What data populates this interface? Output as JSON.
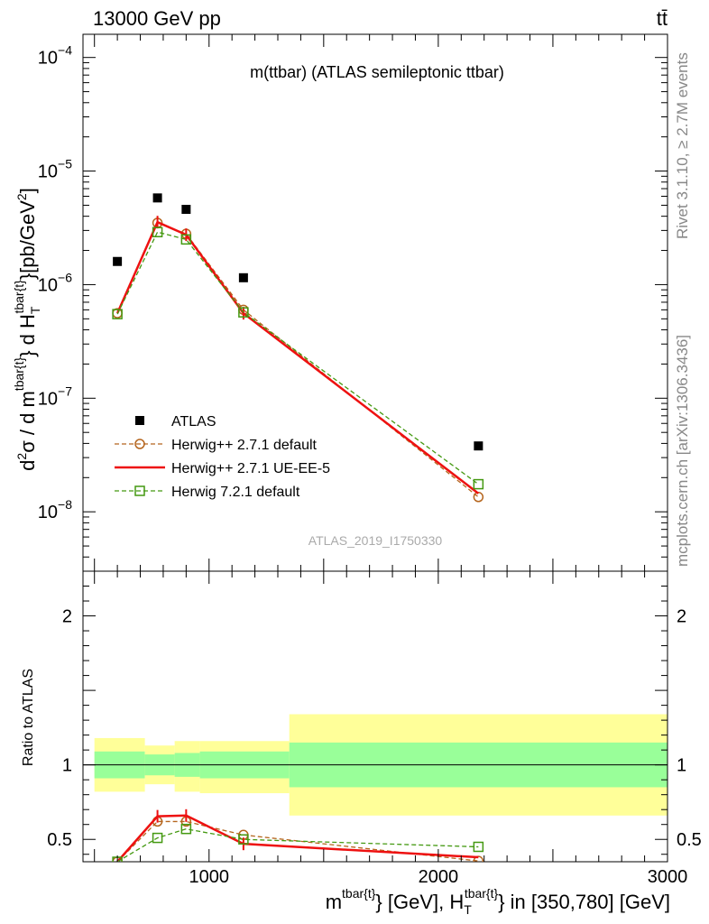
{
  "header": {
    "left": "13000 GeV pp",
    "right": "tt̄"
  },
  "side_text": {
    "rivet": "Rivet 3.1.10, ≥ 2.7M events",
    "mcplots": "mcplots.cern.ch [arXiv:1306.3436]"
  },
  "chart_data": [
    {
      "type": "scatter",
      "title": "m(ttbar) (ATLAS semileptonic ttbar)",
      "watermark": "ATLAS_2019_I1750330",
      "ylabel": "d²σ / d m^{tbar{t}} d H_T^{tbar{t}} [pb/GeV²]",
      "ylabel_parts": {
        "pre": "d",
        "sup1": "2",
        "mid": "σ / d m",
        "sup2": "tbar{t}",
        "mid2": "} d H",
        "sub3": "T",
        "sup3": "tbar{t}",
        "post": "}[pb/GeV",
        "sup4": "2",
        "end": "]"
      },
      "x_scale": "linear",
      "y_scale": "log",
      "xlim": [
        450,
        3000
      ],
      "ylim": [
        3e-09,
        0.00016
      ],
      "y_ticks": [
        {
          "value": 1e-08,
          "base": "10",
          "exp": "−8"
        },
        {
          "value": 1e-07,
          "base": "10",
          "exp": "−7"
        },
        {
          "value": 1e-06,
          "base": "10",
          "exp": "−6"
        },
        {
          "value": 1e-05,
          "base": "10",
          "exp": "−5"
        },
        {
          "value": 0.0001,
          "base": "10",
          "exp": "−4"
        }
      ],
      "legend_position": "lower-left",
      "series": [
        {
          "name": "ATLAS",
          "style": "data",
          "color": "#000000",
          "x": [
            600,
            775,
            900,
            1150,
            2175
          ],
          "y": [
            1.6e-06,
            5.8e-06,
            4.6e-06,
            1.15e-06,
            3.8e-08
          ]
        },
        {
          "name": "Herwig++ 2.7.1 default",
          "style": "circle-dashed",
          "color": "#b5651d",
          "x": [
            600,
            775,
            900,
            1150,
            2175
          ],
          "y": [
            5.6e-07,
            3.5e-06,
            2.8e-06,
            6e-07,
            1.35e-08
          ]
        },
        {
          "name": "Herwig++ 2.7.1 UE-EE-5",
          "style": "solid",
          "color": "#ee1111",
          "x": [
            600,
            775,
            900,
            1150,
            2175
          ],
          "y": [
            5.6e-07,
            3.55e-06,
            2.75e-06,
            5.6e-07,
            1.45e-08
          ]
        },
        {
          "name": "Herwig 7.2.1 default",
          "style": "square-dashed",
          "color": "#449911",
          "x": [
            600,
            775,
            900,
            1150,
            2175
          ],
          "y": [
            5.5e-07,
            2.9e-06,
            2.5e-06,
            5.7e-07,
            1.75e-08
          ]
        }
      ]
    },
    {
      "type": "line",
      "ylabel": "Ratio to ATLAS",
      "xlabel_parts": {
        "a": "m",
        "a_sup": "tbar{t}",
        "b": "} [GeV], H",
        "b_sub": "T",
        "b_sup": "tbar{t}",
        "c": "} in [350,780] [GeV]"
      },
      "xlim": [
        450,
        3000
      ],
      "ylim": [
        0.35,
        2.3
      ],
      "x_ticks": [
        1000,
        2000,
        3000
      ],
      "y_ticks": [
        0.5,
        1,
        2
      ],
      "uncertainty_bands": [
        {
          "x0": 500,
          "x1": 720,
          "stat_lo": 0.91,
          "stat_hi": 1.09,
          "tot_lo": 0.82,
          "tot_hi": 1.18
        },
        {
          "x0": 720,
          "x1": 850,
          "stat_lo": 0.93,
          "stat_hi": 1.07,
          "tot_lo": 0.87,
          "tot_hi": 1.13
        },
        {
          "x0": 850,
          "x1": 960,
          "stat_lo": 0.92,
          "stat_hi": 1.08,
          "tot_lo": 0.82,
          "tot_hi": 1.16
        },
        {
          "x0": 960,
          "x1": 1350,
          "stat_lo": 0.91,
          "stat_hi": 1.09,
          "tot_lo": 0.81,
          "tot_hi": 1.16
        },
        {
          "x0": 1350,
          "x1": 3000,
          "stat_lo": 0.85,
          "stat_hi": 1.15,
          "tot_lo": 0.66,
          "tot_hi": 1.34
        }
      ],
      "band_colors": {
        "stat": "#99ff99",
        "total": "#ffff99"
      },
      "series": [
        {
          "name": "Herwig++ 2.7.1 default",
          "style": "circle-dashed",
          "color": "#b5651d",
          "x": [
            600,
            775,
            900,
            1150,
            2175
          ],
          "y": [
            0.35,
            0.62,
            0.62,
            0.53,
            0.355
          ]
        },
        {
          "name": "Herwig++ 2.7.1 UE-EE-5",
          "style": "solid",
          "color": "#ee1111",
          "x": [
            600,
            775,
            900,
            1150,
            2175
          ],
          "y": [
            0.35,
            0.655,
            0.66,
            0.47,
            0.38
          ]
        },
        {
          "name": "Herwig 7.2.1 default",
          "style": "square-dashed",
          "color": "#449911",
          "x": [
            600,
            775,
            900,
            1150,
            2175
          ],
          "y": [
            0.35,
            0.51,
            0.57,
            0.5,
            0.45
          ]
        }
      ]
    }
  ]
}
